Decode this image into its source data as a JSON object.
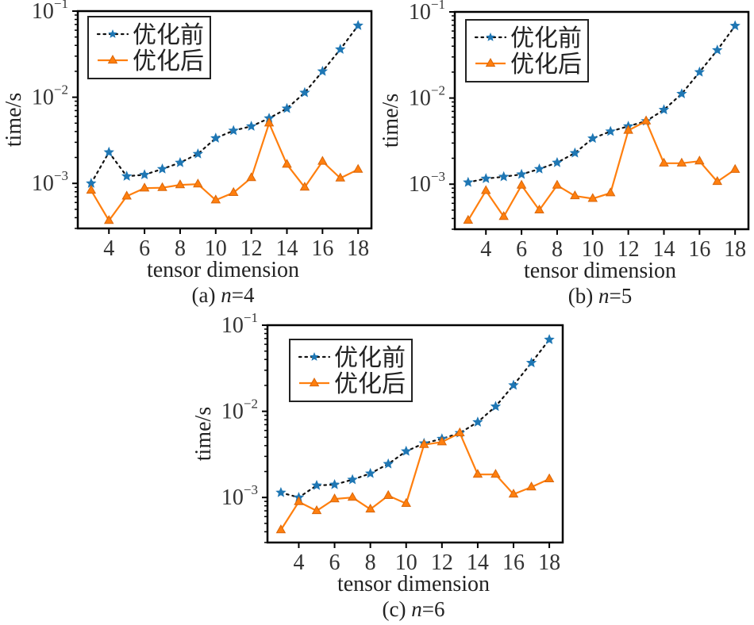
{
  "figure": {
    "colors": {
      "before": "#1f77b4",
      "after": "#ff7f0e",
      "before_line": "#111111"
    }
  },
  "chart_data": [
    {
      "id": "a",
      "type": "line",
      "caption_prefix": "(a) ",
      "caption_var": "n",
      "caption_suffix": "=4",
      "xlabel": "tensor dimension",
      "ylabel": "time/s",
      "yscale": "log",
      "ylim": [
        0.0003,
        0.1
      ],
      "xlim": [
        2.25,
        18.75
      ],
      "xticks": [
        4,
        6,
        8,
        10,
        12,
        14,
        16,
        18
      ],
      "yticks": [
        {
          "base": "10",
          "exp": "−1",
          "value": 0.1
        },
        {
          "base": "10",
          "exp": "−2",
          "value": 0.01
        },
        {
          "base": "10",
          "exp": "−3",
          "value": 0.001
        }
      ],
      "legend": {
        "position": "upper-left",
        "entries": [
          "优化前",
          "优化后"
        ]
      },
      "x": [
        3,
        4,
        5,
        6,
        7,
        8,
        9,
        10,
        11,
        12,
        13,
        14,
        15,
        16,
        17,
        18
      ],
      "series": [
        {
          "name": "优化前",
          "style": "dotted-star",
          "values": [
            0.001,
            0.0023,
            0.00121,
            0.00126,
            0.00147,
            0.00174,
            0.0022,
            0.00335,
            0.0041,
            0.0046,
            0.0057,
            0.0074,
            0.0113,
            0.02,
            0.036,
            0.068
          ]
        },
        {
          "name": "优化后",
          "style": "solid-triangle",
          "values": [
            0.00083,
            0.00037,
            0.00071,
            0.00088,
            0.00089,
            0.00096,
            0.00098,
            0.00064,
            0.00078,
            0.00116,
            0.005,
            0.00166,
            0.0009,
            0.0018,
            0.00115,
            0.00145
          ]
        }
      ]
    },
    {
      "id": "b",
      "type": "line",
      "caption_prefix": "(b) ",
      "caption_var": "n",
      "caption_suffix": "=5",
      "xlabel": "tensor dimension",
      "ylabel": "time/s",
      "yscale": "log",
      "ylim": [
        0.0003,
        0.1
      ],
      "xlim": [
        2.25,
        18.75
      ],
      "xticks": [
        4,
        6,
        8,
        10,
        12,
        14,
        16,
        18
      ],
      "yticks": [
        {
          "base": "10",
          "exp": "−1",
          "value": 0.1
        },
        {
          "base": "10",
          "exp": "−2",
          "value": 0.01
        },
        {
          "base": "10",
          "exp": "−3",
          "value": 0.001
        }
      ],
      "legend": {
        "position": "upper-left",
        "entries": [
          "优化前",
          "优化后"
        ]
      },
      "x": [
        3,
        4,
        5,
        6,
        7,
        8,
        9,
        10,
        11,
        12,
        13,
        14,
        15,
        16,
        17,
        18
      ],
      "series": [
        {
          "name": "优化前",
          "style": "dotted-star",
          "values": [
            0.00105,
            0.00116,
            0.00122,
            0.0013,
            0.0015,
            0.00178,
            0.0023,
            0.0034,
            0.0041,
            0.0047,
            0.0054,
            0.0073,
            0.0112,
            0.02,
            0.036,
            0.069
          ]
        },
        {
          "name": "优化后",
          "style": "solid-triangle",
          "values": [
            0.00038,
            0.00084,
            0.00042,
            0.00097,
            0.0005,
            0.00097,
            0.00073,
            0.00068,
            0.00079,
            0.0042,
            0.0054,
            0.00175,
            0.00175,
            0.00185,
            0.00107,
            0.00148
          ]
        }
      ]
    },
    {
      "id": "c",
      "type": "line",
      "caption_prefix": "(c) ",
      "caption_var": "n",
      "caption_suffix": "=6",
      "xlabel": "tensor dimension",
      "ylabel": "time/s",
      "yscale": "log",
      "ylim": [
        0.0003,
        0.1
      ],
      "xlim": [
        2.25,
        18.75
      ],
      "xticks": [
        4,
        6,
        8,
        10,
        12,
        14,
        16,
        18
      ],
      "yticks": [
        {
          "base": "10",
          "exp": "−1",
          "value": 0.1
        },
        {
          "base": "10",
          "exp": "−2",
          "value": 0.01
        },
        {
          "base": "10",
          "exp": "−3",
          "value": 0.001
        }
      ],
      "legend": {
        "position": "upper-left",
        "entries": [
          "优化前",
          "优化后"
        ]
      },
      "x": [
        3,
        4,
        5,
        6,
        7,
        8,
        9,
        10,
        11,
        12,
        13,
        14,
        15,
        16,
        17,
        18
      ],
      "series": [
        {
          "name": "优化前",
          "style": "dotted-star",
          "values": [
            0.00114,
            0.001,
            0.00138,
            0.00141,
            0.00161,
            0.0019,
            0.00245,
            0.00344,
            0.00425,
            0.0048,
            0.0056,
            0.0075,
            0.0114,
            0.0201,
            0.0366,
            0.068
          ]
        },
        {
          "name": "优化后",
          "style": "solid-triangle",
          "values": [
            0.00042,
            0.00089,
            0.0007,
            0.00096,
            0.001,
            0.00073,
            0.00105,
            0.00085,
            0.0041,
            0.0044,
            0.0056,
            0.00185,
            0.00185,
            0.00109,
            0.00132,
            0.00164
          ]
        }
      ]
    }
  ]
}
